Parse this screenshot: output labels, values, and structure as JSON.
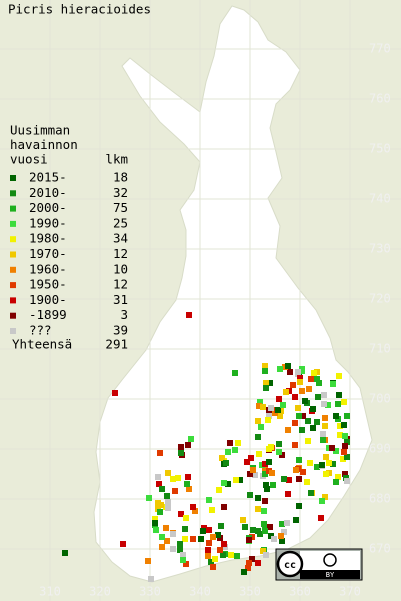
{
  "title": "Picris hieracioides",
  "legend": {
    "heading": [
      "Uusimman",
      "havainnon",
      "vuosi"
    ],
    "count_header": "lkm",
    "entries": [
      {
        "label": "2015-",
        "count": "18",
        "color": "#006400"
      },
      {
        "label": "2010-",
        "count": "32",
        "color": "#138a13"
      },
      {
        "label": "2000-",
        "count": "75",
        "color": "#1fb01f"
      },
      {
        "label": "1990-",
        "count": "25",
        "color": "#3cdc3c"
      },
      {
        "label": "1980-",
        "count": "34",
        "color": "#f2f200"
      },
      {
        "label": "1970-",
        "count": "12",
        "color": "#f0c800"
      },
      {
        "label": "1960-",
        "count": "10",
        "color": "#f08000"
      },
      {
        "label": "1950-",
        "count": "12",
        "color": "#e03a00"
      },
      {
        "label": "1900-",
        "count": "31",
        "color": "#c80000"
      },
      {
        "label": "-1899",
        "count": "3",
        "color": "#800000"
      },
      {
        "label": "???",
        "count": "39",
        "color": "#c8c8c8"
      }
    ],
    "total": {
      "label": "Yhteensä",
      "count": "291"
    }
  },
  "grid_labels": {
    "north": [
      "770",
      "760",
      "750",
      "740",
      "730",
      "720",
      "710",
      "700",
      "690",
      "680",
      "670"
    ],
    "east": [
      "310",
      "320",
      "330",
      "340",
      "350",
      "360",
      "370"
    ]
  },
  "badge": {
    "cc": "cc",
    "by": "BY"
  }
}
